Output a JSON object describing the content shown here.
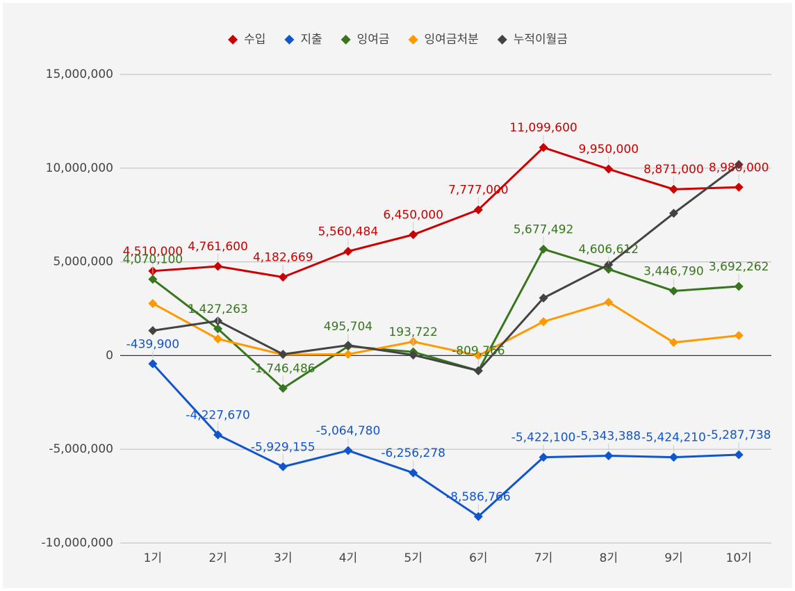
{
  "chart_data": {
    "type": "line",
    "categories": [
      "1기",
      "2기",
      "3기",
      "4기",
      "5기",
      "6기",
      "7기",
      "8기",
      "9기",
      "10기"
    ],
    "series": [
      {
        "name": "수입",
        "color": "#cc0000",
        "values": [
          4510000,
          4761600,
          4182669,
          5560484,
          6450000,
          7777000,
          11099600,
          9950000,
          8871000,
          8980000
        ],
        "value_labels": [
          "4,510,000",
          "4,761,600",
          "4,182,669",
          "5,560,484",
          "6,450,000",
          "7,777,000",
          "11,099,600",
          "9,950,000",
          "8,871,000",
          "8,980,000"
        ]
      },
      {
        "name": "지출",
        "color": "#1155cc",
        "values": [
          -439900,
          -4227670,
          -5929155,
          -5064780,
          -6256278,
          -8586766,
          -5422100,
          -5343388,
          -5424210,
          -5287738
        ],
        "value_labels": [
          "-439,900",
          "-4,227,670",
          "-5,929,155",
          "-5,064,780",
          "-6,256,278",
          "-8,586,766",
          "-5,422,100",
          "-5,343,388",
          "-5,424,210",
          "-5,287,738"
        ]
      },
      {
        "name": "잉여금",
        "color": "#38761d",
        "values": [
          4070100,
          1427263,
          -1746486,
          495704,
          193722,
          -809766,
          5677492,
          4606612,
          3446790,
          3692262
        ],
        "value_labels": [
          "4,070,100",
          "1,427,263",
          "-1,746,486",
          "495,704",
          "193,722",
          "-809,766",
          "5,677,492",
          "4,606,612",
          "3,446,790",
          "3,692,262"
        ]
      },
      {
        "name": "잉여금처분",
        "color": "#ff9900",
        "values": [
          2780000,
          890000,
          50000,
          70000,
          740000,
          0,
          1810000,
          2850000,
          700000,
          1070000
        ]
      },
      {
        "name": "누적이월금",
        "color": "#434343",
        "values": [
          1330000,
          1850000,
          70000,
          550000,
          30000,
          -809766,
          3070000,
          4850000,
          7590000,
          10190000
        ]
      }
    ],
    "ylim": [
      -10000000,
      15000000
    ],
    "yticks": [
      {
        "value": -10000000,
        "label": "-10,000,000"
      },
      {
        "value": -5000000,
        "label": "-5,000,000"
      },
      0,
      {
        "value": 5000000,
        "label": "5,000,000"
      },
      {
        "value": 10000000,
        "label": "10,000,000"
      },
      {
        "value": 15000000,
        "label": "15,000,000"
      }
    ],
    "grid": true,
    "legend": "top"
  }
}
